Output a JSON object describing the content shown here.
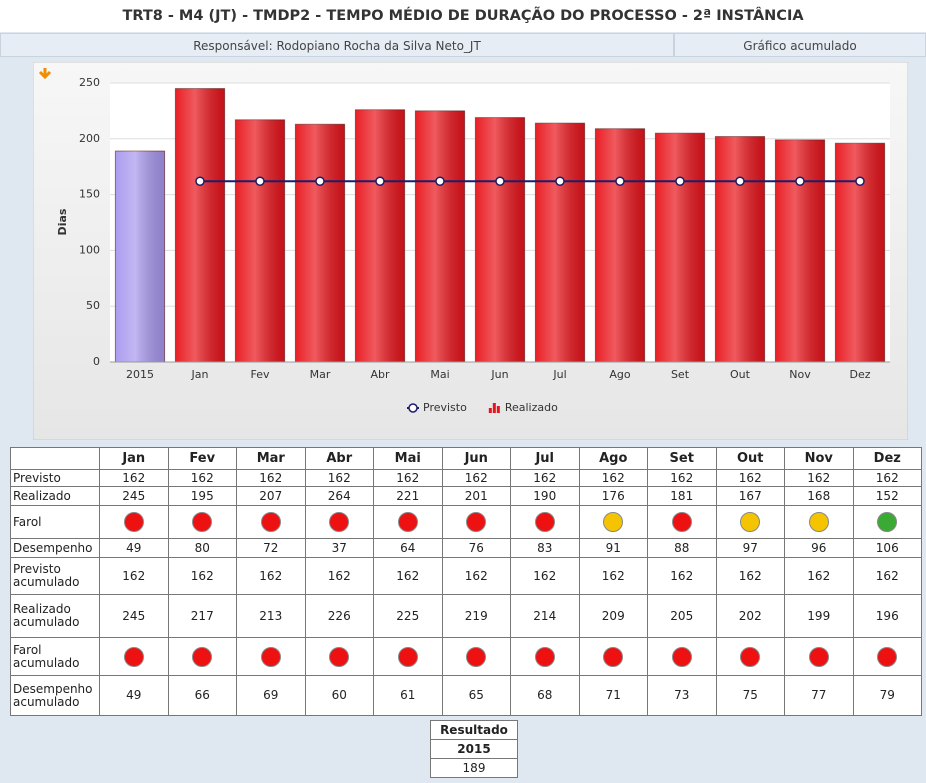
{
  "header": {
    "title": "TRT8 - M4 (JT) - TMDP2 - TEMPO MÉDIO DE DURAÇÃO DO PROCESSO - 2ª INSTÂNCIA",
    "responsible": "Responsável: Rodopiano Rocha da Silva Neto_JT",
    "mode": "Gráfico acumulado"
  },
  "chart_data": {
    "type": "bar",
    "ylabel": "Dias",
    "categories": [
      "2015",
      "Jan",
      "Fev",
      "Mar",
      "Abr",
      "Mai",
      "Jun",
      "Jul",
      "Ago",
      "Set",
      "Out",
      "Nov",
      "Dez"
    ],
    "series": [
      {
        "name": "Realizado",
        "color": "#e8141b",
        "colors": [
          "#a898ee",
          "#e8141b",
          "#e8141b",
          "#e8141b",
          "#e8141b",
          "#e8141b",
          "#e8141b",
          "#e8141b",
          "#e8141b",
          "#e8141b",
          "#e8141b",
          "#e8141b",
          "#e8141b"
        ],
        "values": [
          189,
          245,
          217,
          213,
          226,
          225,
          219,
          214,
          209,
          205,
          202,
          199,
          196
        ]
      },
      {
        "name": "Previsto",
        "type": "line",
        "color": "#1c1c6a",
        "values": [
          null,
          162,
          162,
          162,
          162,
          162,
          162,
          162,
          162,
          162,
          162,
          162,
          162
        ]
      }
    ],
    "ylim": [
      0,
      250
    ],
    "yticks": [
      0,
      50,
      100,
      150,
      200,
      250
    ],
    "grid": true,
    "legend": "bottom"
  },
  "table": {
    "rows": [
      {
        "label": "Previsto",
        "values": [
          162,
          162,
          162,
          162,
          162,
          162,
          162,
          162,
          162,
          162,
          162,
          162
        ]
      },
      {
        "label": "Realizado",
        "values": [
          245,
          195,
          207,
          264,
          221,
          201,
          190,
          176,
          181,
          167,
          168,
          152
        ]
      },
      {
        "label": "Farol",
        "colors": [
          "#ee1111",
          "#ee1111",
          "#ee1111",
          "#ee1111",
          "#ee1111",
          "#ee1111",
          "#ee1111",
          "#f5c400",
          "#ee1111",
          "#f5c400",
          "#f5c400",
          "#3aaa35"
        ]
      },
      {
        "label": "Desempenho",
        "values": [
          49,
          80,
          72,
          37,
          64,
          76,
          83,
          91,
          88,
          97,
          96,
          106
        ]
      },
      {
        "label": "Previsto acumulado",
        "values": [
          162,
          162,
          162,
          162,
          162,
          162,
          162,
          162,
          162,
          162,
          162,
          162
        ]
      },
      {
        "label": "Realizado acumulado",
        "values": [
          245,
          217,
          213,
          226,
          225,
          219,
          214,
          209,
          205,
          202,
          199,
          196
        ]
      },
      {
        "label": "Farol acumulado",
        "colors": [
          "#ee1111",
          "#ee1111",
          "#ee1111",
          "#ee1111",
          "#ee1111",
          "#ee1111",
          "#ee1111",
          "#ee1111",
          "#ee1111",
          "#ee1111",
          "#ee1111",
          "#ee1111"
        ]
      },
      {
        "label": "Desempenho acumulado",
        "values": [
          49,
          66,
          69,
          60,
          61,
          65,
          68,
          71,
          73,
          75,
          77,
          79
        ]
      }
    ]
  },
  "result": {
    "title": "Resultado",
    "year": "2015",
    "value": 189
  }
}
